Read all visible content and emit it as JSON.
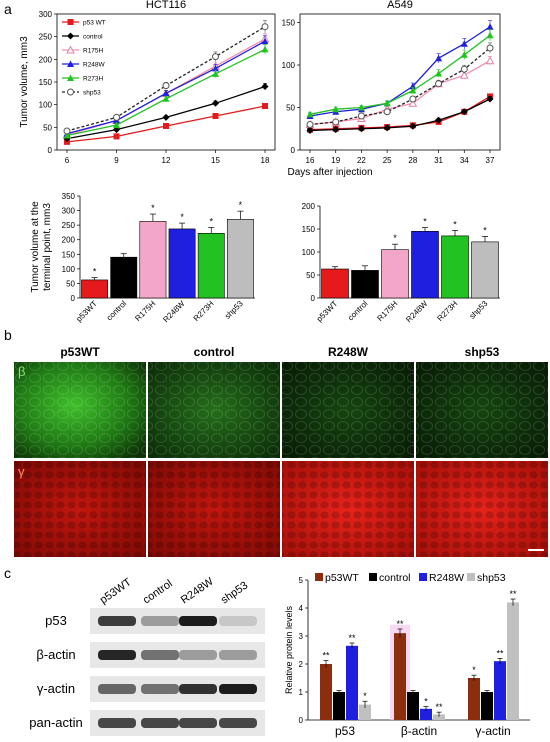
{
  "panels": {
    "a": "a",
    "b": "b",
    "c": "c"
  },
  "colors": {
    "p53WT": "#e41a1c",
    "control": "#000000",
    "R175H": "#f4a6c8",
    "R248W": "#1f1fe0",
    "R273H": "#22c222",
    "shp53": "#bdbdbd",
    "c_p53WT": "#8b2e0e",
    "c_shp53": "#c0c0c0"
  },
  "shared_xlabel": "Days after injection",
  "chart_data": [
    {
      "type": "line",
      "title": "HCT116",
      "xlabel": "",
      "ylabel": "Tumor volume, mm3",
      "x": [
        6,
        9,
        12,
        15,
        18
      ],
      "ylim": [
        0,
        300
      ],
      "yticks": [
        0,
        50,
        100,
        150,
        200,
        250,
        300
      ],
      "legend": "top-left",
      "series": [
        {
          "name": "p53 WT",
          "key": "p53WT",
          "values": [
            18,
            30,
            53,
            75,
            97
          ]
        },
        {
          "name": "control",
          "key": "control",
          "values": [
            25,
            45,
            72,
            103,
            140
          ]
        },
        {
          "name": "R175H",
          "key": "R175H",
          "values": [
            33,
            65,
            125,
            185,
            245
          ]
        },
        {
          "name": "R248W",
          "key": "R248W",
          "values": [
            36,
            65,
            125,
            180,
            240
          ]
        },
        {
          "name": "R273H",
          "key": "R273H",
          "values": [
            32,
            55,
            113,
            168,
            222
          ]
        },
        {
          "name": "shp53",
          "key": "shp53",
          "values": [
            42,
            72,
            142,
            206,
            272
          ]
        }
      ]
    },
    {
      "type": "line",
      "title": "A549",
      "xlabel": "",
      "ylabel": "",
      "x": [
        16,
        19,
        22,
        25,
        28,
        31,
        34,
        37
      ],
      "ylim": [
        0,
        160
      ],
      "yticks": [
        0,
        50,
        100,
        150
      ],
      "series": [
        {
          "key": "p53WT",
          "values": [
            24,
            25,
            26,
            27,
            29,
            33,
            45,
            63
          ]
        },
        {
          "key": "control",
          "values": [
            23,
            24,
            25,
            26,
            28,
            35,
            45,
            60
          ]
        },
        {
          "key": "R175H",
          "values": [
            30,
            33,
            37,
            48,
            55,
            78,
            88,
            105
          ]
        },
        {
          "key": "R248W",
          "values": [
            40,
            45,
            48,
            55,
            75,
            108,
            125,
            145
          ]
        },
        {
          "key": "R273H",
          "values": [
            42,
            48,
            50,
            55,
            70,
            90,
            112,
            135
          ]
        },
        {
          "key": "shp53",
          "values": [
            30,
            33,
            40,
            45,
            60,
            78,
            95,
            120
          ]
        }
      ]
    },
    {
      "type": "bar",
      "title": "",
      "ylabel": "Tumor volume at the terminal point, mm3",
      "categories": [
        "p53WT",
        "control",
        "R175H",
        "R248W",
        "R273H",
        "shp53"
      ],
      "values": [
        62,
        140,
        263,
        237,
        222,
        270
      ],
      "errors": [
        8,
        12,
        25,
        20,
        20,
        28
      ],
      "significance": [
        "*",
        "",
        "*",
        "*",
        "*",
        "*"
      ],
      "ylim": [
        0,
        350
      ],
      "yticks": [
        0,
        50,
        100,
        150,
        200,
        250,
        300,
        350
      ]
    },
    {
      "type": "bar",
      "title": "",
      "ylabel": "",
      "categories": [
        "p53WT",
        "control",
        "R175H",
        "R248W",
        "R273H",
        "shp53"
      ],
      "values": [
        63,
        60,
        105,
        145,
        135,
        122
      ],
      "errors": [
        5,
        10,
        12,
        8,
        12,
        12
      ],
      "significance": [
        "",
        "",
        "*",
        "*",
        "*",
        "*"
      ],
      "ylim": [
        0,
        200
      ],
      "yticks": [
        0,
        50,
        100,
        150,
        200
      ]
    },
    {
      "type": "bar",
      "title": "",
      "ylabel": "Relative protein levels",
      "categories": [
        "p53",
        "β-actin",
        "γ-actin"
      ],
      "series_names": [
        "p53WT",
        "control",
        "R248W",
        "shp53"
      ],
      "series": [
        {
          "name": "p53WT",
          "values": [
            2.0,
            3.1,
            1.5
          ],
          "errors": [
            0.12,
            0.15,
            0.1
          ],
          "sig": [
            "**",
            "**",
            "*"
          ]
        },
        {
          "name": "control",
          "values": [
            1.0,
            1.0,
            1.0
          ],
          "errors": [
            0.05,
            0.05,
            0.05
          ],
          "sig": [
            "",
            "",
            ""
          ]
        },
        {
          "name": "R248W",
          "values": [
            2.65,
            0.4,
            2.1
          ],
          "errors": [
            0.1,
            0.08,
            0.1
          ],
          "sig": [
            "**",
            "*",
            "**"
          ]
        },
        {
          "name": "shp53",
          "values": [
            0.55,
            0.2,
            4.2
          ],
          "errors": [
            0.12,
            0.08,
            0.12
          ],
          "sig": [
            "*",
            "**",
            "**"
          ]
        }
      ],
      "ylim": [
        0,
        5
      ],
      "yticks": [
        0,
        1,
        2,
        3,
        4,
        5
      ],
      "legend": "top"
    }
  ],
  "microscopy": {
    "columns": [
      "p53WT",
      "control",
      "R248W",
      "shp53"
    ],
    "row_labels": [
      "β",
      "γ"
    ]
  },
  "blot": {
    "lanes": [
      "p53WT",
      "control",
      "R248W",
      "shp53"
    ],
    "rows": [
      "p53",
      "β-actin",
      "γ-actin",
      "pan-actin"
    ]
  }
}
